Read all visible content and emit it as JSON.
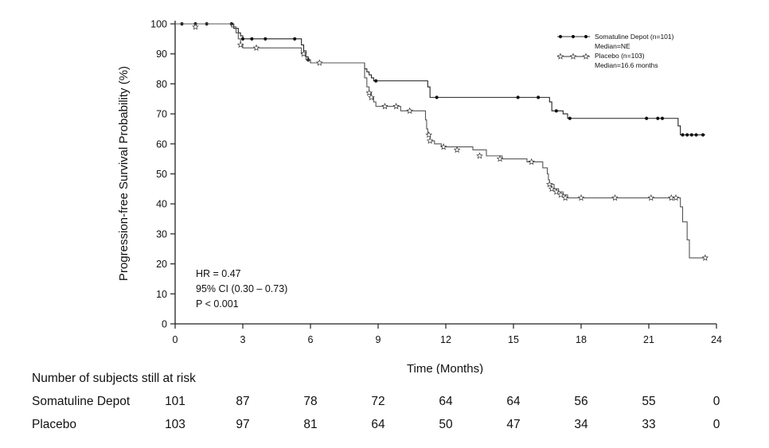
{
  "chart_data": {
    "type": "line",
    "subtype": "kaplan-meier",
    "xlabel": "Time (Months)",
    "ylabel": "Progression-free Survival Probability (%)",
    "xlim": [
      0,
      24
    ],
    "ylim": [
      0,
      100
    ],
    "xticks": [
      "0",
      "3",
      "6",
      "9",
      "12",
      "15",
      "18",
      "21",
      "24"
    ],
    "yticks": [
      "0",
      "10",
      "20",
      "30",
      "40",
      "50",
      "60",
      "70",
      "80",
      "90",
      "100"
    ],
    "legend": {
      "position": "top-right",
      "entries": [
        {
          "label": "Somatuline Depot (n=101)",
          "sublabel": "Median=NE"
        },
        {
          "label": "Placebo (n=103)",
          "sublabel": "Median=16.6 months"
        }
      ]
    },
    "annotations": [
      "HR = 0.47",
      "95% CI (0.30 – 0.73)",
      "P < 0.001"
    ],
    "series": [
      {
        "name": "Somatuline Depot",
        "marker": "circle",
        "steps": [
          [
            0,
            100
          ],
          [
            2.6,
            98.5
          ],
          [
            2.8,
            97
          ],
          [
            2.9,
            96
          ],
          [
            3.0,
            95
          ],
          [
            5.4,
            95
          ],
          [
            5.6,
            93
          ],
          [
            5.7,
            91
          ],
          [
            5.8,
            89
          ],
          [
            5.9,
            88
          ],
          [
            6.0,
            87
          ],
          [
            8.3,
            87
          ],
          [
            8.4,
            85
          ],
          [
            8.5,
            84
          ],
          [
            8.6,
            83
          ],
          [
            8.7,
            82
          ],
          [
            8.8,
            81
          ],
          [
            11.1,
            81
          ],
          [
            11.2,
            79
          ],
          [
            11.3,
            75.5
          ],
          [
            16.5,
            75.5
          ],
          [
            16.6,
            74
          ],
          [
            16.7,
            71
          ],
          [
            17.2,
            70
          ],
          [
            17.4,
            68.5
          ],
          [
            22.2,
            68.5
          ],
          [
            22.3,
            66
          ],
          [
            22.4,
            63
          ],
          [
            23.5,
            63
          ]
        ],
        "censored": [
          [
            0.3,
            100
          ],
          [
            0.9,
            100
          ],
          [
            1.4,
            100
          ],
          [
            2.5,
            100
          ],
          [
            3.0,
            95
          ],
          [
            3.4,
            95
          ],
          [
            4.0,
            95
          ],
          [
            5.3,
            95
          ],
          [
            5.9,
            88
          ],
          [
            8.9,
            81
          ],
          [
            11.6,
            75.5
          ],
          [
            15.2,
            75.5
          ],
          [
            16.1,
            75.5
          ],
          [
            16.9,
            71
          ],
          [
            17.5,
            68.5
          ],
          [
            20.9,
            68.5
          ],
          [
            21.4,
            68.5
          ],
          [
            21.6,
            68.5
          ],
          [
            22.5,
            63
          ],
          [
            22.7,
            63
          ],
          [
            22.9,
            63
          ],
          [
            23.1,
            63
          ],
          [
            23.4,
            63
          ]
        ]
      },
      {
        "name": "Placebo",
        "marker": "star",
        "steps": [
          [
            0,
            100
          ],
          [
            2.5,
            99
          ],
          [
            2.7,
            97
          ],
          [
            2.8,
            95
          ],
          [
            2.9,
            93
          ],
          [
            3.0,
            92
          ],
          [
            5.4,
            92
          ],
          [
            5.6,
            90
          ],
          [
            5.8,
            88
          ],
          [
            6.0,
            87
          ],
          [
            8.3,
            87
          ],
          [
            8.4,
            82
          ],
          [
            8.5,
            79
          ],
          [
            8.6,
            77
          ],
          [
            8.7,
            75.5
          ],
          [
            8.8,
            74
          ],
          [
            8.9,
            72.5
          ],
          [
            9.7,
            72.5
          ],
          [
            10.0,
            71
          ],
          [
            11.0,
            71
          ],
          [
            11.1,
            68
          ],
          [
            11.15,
            65
          ],
          [
            11.2,
            63
          ],
          [
            11.3,
            61
          ],
          [
            11.5,
            60
          ],
          [
            11.8,
            59
          ],
          [
            13.2,
            58
          ],
          [
            13.8,
            56
          ],
          [
            14.5,
            55
          ],
          [
            15.6,
            54
          ],
          [
            16.3,
            52
          ],
          [
            16.5,
            50
          ],
          [
            16.55,
            48
          ],
          [
            16.6,
            46.5
          ],
          [
            16.8,
            45
          ],
          [
            17.0,
            44
          ],
          [
            17.2,
            43
          ],
          [
            17.4,
            42
          ],
          [
            22.3,
            42
          ],
          [
            22.4,
            39
          ],
          [
            22.5,
            34
          ],
          [
            22.7,
            28
          ],
          [
            22.8,
            22
          ],
          [
            23.5,
            22
          ]
        ],
        "censored": [
          [
            0.9,
            99
          ],
          [
            2.9,
            93
          ],
          [
            3.6,
            92
          ],
          [
            5.7,
            90
          ],
          [
            6.4,
            87
          ],
          [
            8.6,
            77
          ],
          [
            8.7,
            75.5
          ],
          [
            9.3,
            72.5
          ],
          [
            9.8,
            72.5
          ],
          [
            10.4,
            71
          ],
          [
            11.25,
            63
          ],
          [
            11.3,
            61
          ],
          [
            11.9,
            59
          ],
          [
            12.5,
            58
          ],
          [
            13.5,
            56
          ],
          [
            14.4,
            55
          ],
          [
            15.8,
            54
          ],
          [
            16.6,
            46.5
          ],
          [
            16.7,
            45
          ],
          [
            16.9,
            44
          ],
          [
            17.1,
            43
          ],
          [
            17.3,
            42
          ],
          [
            18.0,
            42
          ],
          [
            19.5,
            42
          ],
          [
            21.1,
            42
          ],
          [
            22.0,
            42
          ],
          [
            22.2,
            42
          ],
          [
            23.5,
            22
          ]
        ]
      }
    ]
  },
  "risk_table": {
    "title": "Number of subjects still at risk",
    "times": [
      0,
      3,
      6,
      9,
      12,
      15,
      18,
      21,
      24
    ],
    "rows": [
      {
        "name": "Somatuline Depot",
        "values": [
          "101",
          "87",
          "78",
          "72",
          "64",
          "64",
          "56",
          "55",
          "0"
        ]
      },
      {
        "name": "Placebo",
        "values": [
          "103",
          "97",
          "81",
          "64",
          "50",
          "47",
          "34",
          "33",
          "0"
        ]
      }
    ]
  }
}
